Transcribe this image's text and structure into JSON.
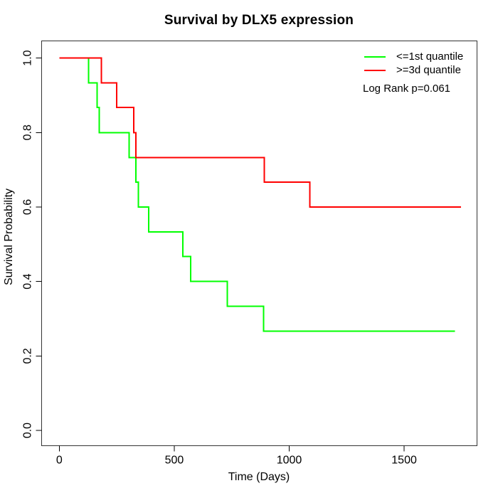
{
  "chart_data": {
    "type": "line",
    "subtype": "kaplan-meier-step",
    "title": "Survival by DLX5 expression",
    "xlabel": "Time (Days)",
    "ylabel": "Survival Probability",
    "x_ticks": [
      0,
      500,
      1000,
      1500
    ],
    "y_ticks": [
      0.0,
      0.2,
      0.4,
      0.6,
      0.8,
      1.0
    ],
    "xlim": [
      -77,
      1817
    ],
    "ylim": [
      -0.041,
      1.046
    ],
    "grid": false,
    "legend_position": "top-right",
    "annotation": "Log Rank p=0.061",
    "series": [
      {
        "name": "<=1st quantile",
        "color": "#00FF00",
        "points": [
          [
            0,
            1.0
          ],
          [
            127,
            1.0
          ],
          [
            127,
            0.933
          ],
          [
            164,
            0.933
          ],
          [
            164,
            0.867
          ],
          [
            174,
            0.867
          ],
          [
            174,
            0.8
          ],
          [
            303,
            0.8
          ],
          [
            303,
            0.733
          ],
          [
            333,
            0.733
          ],
          [
            333,
            0.667
          ],
          [
            344,
            0.667
          ],
          [
            344,
            0.6
          ],
          [
            388,
            0.6
          ],
          [
            388,
            0.533
          ],
          [
            538,
            0.533
          ],
          [
            538,
            0.467
          ],
          [
            571,
            0.467
          ],
          [
            571,
            0.4
          ],
          [
            731,
            0.4
          ],
          [
            731,
            0.333
          ],
          [
            889,
            0.333
          ],
          [
            889,
            0.267
          ],
          [
            1721,
            0.267
          ]
        ]
      },
      {
        "name": ">=3d quantile",
        "color": "#FF0000",
        "points": [
          [
            0,
            1.0
          ],
          [
            183,
            1.0
          ],
          [
            183,
            0.933
          ],
          [
            249,
            0.933
          ],
          [
            249,
            0.867
          ],
          [
            323,
            0.867
          ],
          [
            323,
            0.8
          ],
          [
            333,
            0.8
          ],
          [
            333,
            0.733
          ],
          [
            892,
            0.733
          ],
          [
            892,
            0.667
          ],
          [
            1090,
            0.667
          ],
          [
            1090,
            0.6
          ],
          [
            1747,
            0.6
          ]
        ]
      }
    ]
  }
}
